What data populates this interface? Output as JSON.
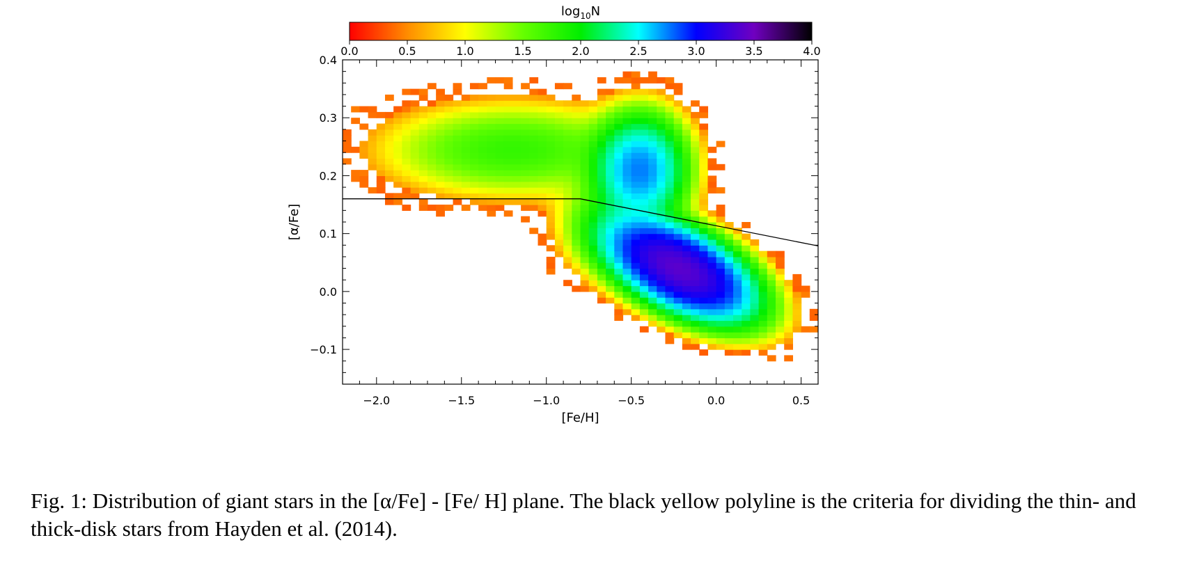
{
  "chart_data": {
    "type": "heatmap",
    "xlabel": "[Fe/H]",
    "ylabel": "[α/Fe]",
    "xlim": [
      -2.2,
      0.6
    ],
    "ylim": [
      -0.16,
      0.4
    ],
    "xticks": [
      -2.0,
      -1.5,
      -1.0,
      -0.5,
      0.0,
      0.5
    ],
    "xtick_labels": [
      "−2.0",
      "−1.5",
      "−1.0",
      "−0.5",
      "0.0",
      "0.5"
    ],
    "yticks": [
      -0.1,
      0.0,
      0.1,
      0.2,
      0.3,
      0.4
    ],
    "ytick_labels": [
      "−0.1",
      "0.0",
      "0.1",
      "0.2",
      "0.3",
      "0.4"
    ],
    "colorbar": {
      "label_main": "log",
      "label_sub": "10",
      "label_tail": "N",
      "range": [
        0.0,
        4.0
      ],
      "ticks": [
        0.0,
        0.5,
        1.0,
        1.5,
        2.0,
        2.5,
        3.0,
        3.5,
        4.0
      ],
      "tick_labels": [
        "0.0",
        "0.5",
        "1.0",
        "1.5",
        "2.0",
        "2.5",
        "3.0",
        "3.5",
        "4.0"
      ],
      "colors": [
        "#ff0000",
        "#ff8c00",
        "#ffff00",
        "#66ff00",
        "#00ee00",
        "#00ffff",
        "#0000ff",
        "#7000c0",
        "#000000"
      ]
    },
    "density_components": [
      {
        "x": -0.22,
        "y": 0.04,
        "sx": 0.2,
        "sy": 0.04,
        "rho": -0.55,
        "peak": 3.4
      },
      {
        "x": -0.45,
        "y": 0.21,
        "sx": 0.13,
        "sy": 0.045,
        "rho": 0.0,
        "peak": 2.75
      },
      {
        "x": -1.2,
        "y": 0.245,
        "sx": 0.38,
        "sy": 0.04,
        "rho": 0.0,
        "peak": 1.75
      },
      {
        "x": -0.65,
        "y": 0.12,
        "sx": 0.15,
        "sy": 0.05,
        "rho": 0.0,
        "peak": 1.4
      }
    ],
    "bin_size": {
      "x": 0.05,
      "y": 0.01
    },
    "divider_line": {
      "x": [
        -2.2,
        -0.8,
        0.6
      ],
      "y": [
        0.16,
        0.16,
        0.0787
      ],
      "color": "#000000"
    }
  },
  "caption": "Fig. 1: Distribution of giant stars in the [α/Fe] - [Fe/ H] plane. The black yellow polyline is the criteria for dividing the thin- and thick-disk stars from Hayden et al. (2014)."
}
